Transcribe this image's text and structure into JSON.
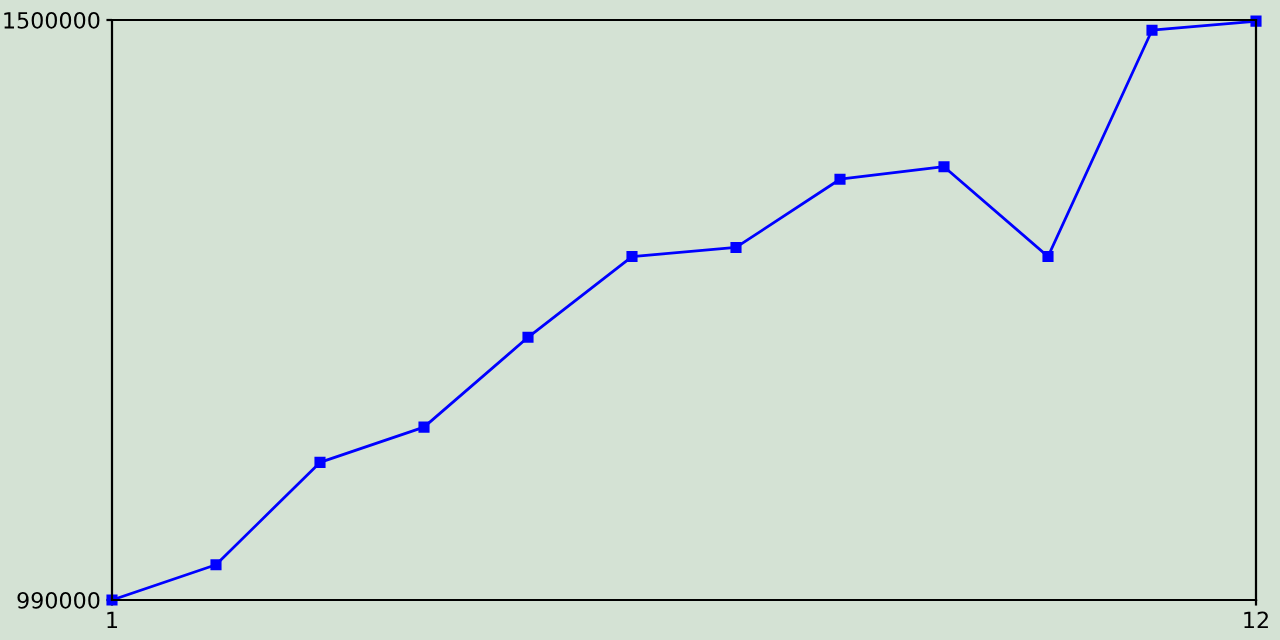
{
  "chart_data": {
    "type": "line",
    "x": [
      1,
      2,
      3,
      4,
      5,
      6,
      7,
      8,
      9,
      10,
      11,
      12
    ],
    "series": [
      {
        "color": "#0000ff",
        "values": [
          990000,
          1021000,
          1111000,
          1142000,
          1221000,
          1292000,
          1300000,
          1360000,
          1371000,
          1292000,
          1491000,
          1499000
        ]
      }
    ],
    "xlim": [
      1,
      12
    ],
    "xticks": [
      1,
      12
    ],
    "ylim": [
      990000,
      1500000
    ],
    "yticks": [
      990000,
      1500000
    ],
    "grid": false,
    "legend": false,
    "marker": "square",
    "line_style": "solid"
  }
}
